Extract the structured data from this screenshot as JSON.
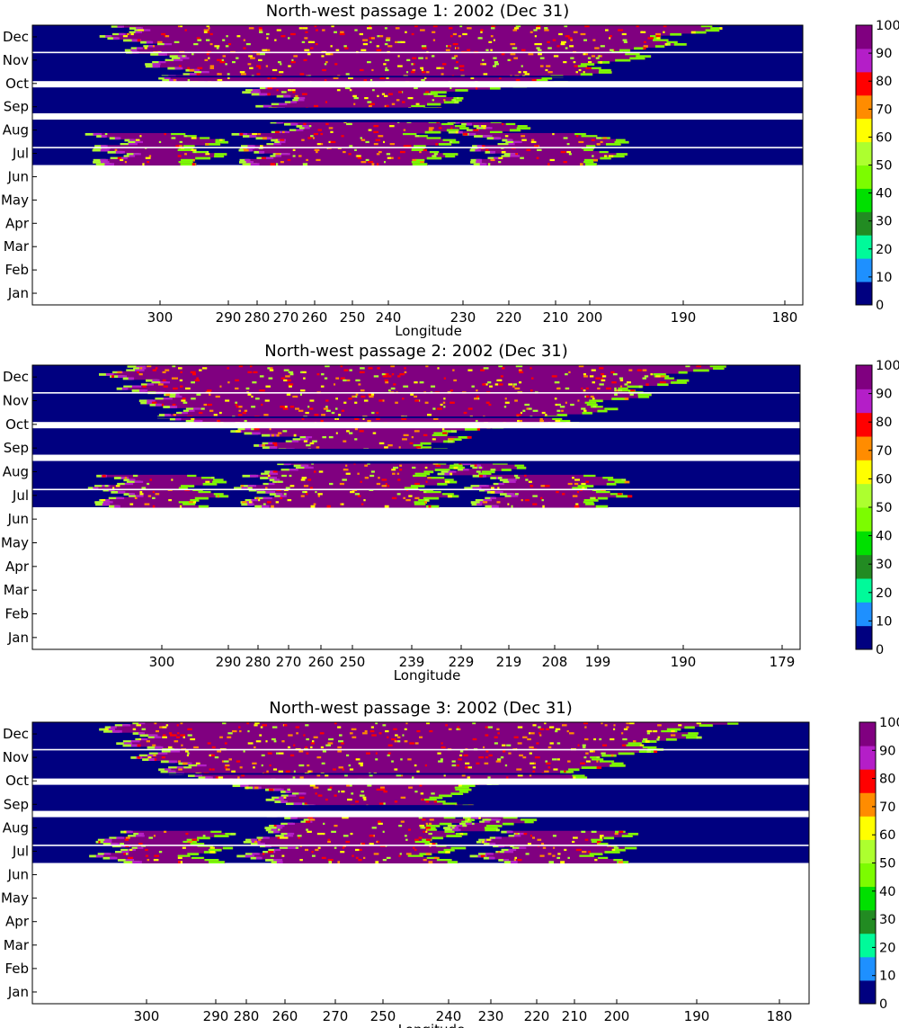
{
  "figure": {
    "title": "",
    "colors": {
      "ocean": "#000080",
      "background": "#ffffff",
      "axes": "#000000"
    }
  },
  "chart_data": [
    {
      "type": "heatmap",
      "title": "North-west passage 1: 2002 (Dec 31)",
      "xlabel": "Longitude",
      "ylabel": "",
      "x_ticks": [
        "300",
        "290",
        "280",
        "270",
        "260",
        "250",
        "240",
        "230",
        "220",
        "210",
        "200",
        "190",
        "180"
      ],
      "y_ticks": [
        "Jan",
        "Feb",
        "Mar",
        "Apr",
        "May",
        "Jun",
        "Jul",
        "Aug",
        "Sep",
        "Oct",
        "Nov",
        "Dec"
      ],
      "data_months": [
        "Jul",
        "Aug",
        "Sep",
        "Oct",
        "Nov",
        "Dec"
      ],
      "colorbar": {
        "ticks": [
          "0",
          "10",
          "20",
          "30",
          "40",
          "50",
          "60",
          "70",
          "80",
          "90",
          "100"
        ],
        "range": [
          0,
          100
        ],
        "colors": [
          "#000080",
          "#1e90ff",
          "#00fa9a",
          "#228b22",
          "#00e000",
          "#7cfc00",
          "#adff2f",
          "#ffff00",
          "#ff8c00",
          "#ff0000",
          "#b41ec8",
          "#800080"
        ]
      }
    },
    {
      "type": "heatmap",
      "title": "North-west passage 2: 2002 (Dec 31)",
      "xlabel": "Longitude",
      "ylabel": "",
      "x_ticks": [
        "300",
        "290",
        "280",
        "270",
        "260",
        "250",
        "239",
        "229",
        "219",
        "208",
        "199",
        "190",
        "179"
      ],
      "y_ticks": [
        "Jan",
        "Feb",
        "Mar",
        "Apr",
        "May",
        "Jun",
        "Jul",
        "Aug",
        "Sep",
        "Oct",
        "Nov",
        "Dec"
      ],
      "data_months": [
        "Jul",
        "Aug",
        "Sep",
        "Oct",
        "Nov",
        "Dec"
      ],
      "colorbar": {
        "ticks": [
          "0",
          "10",
          "20",
          "30",
          "40",
          "50",
          "60",
          "70",
          "80",
          "90",
          "100"
        ],
        "range": [
          0,
          100
        ],
        "colors": [
          "#000080",
          "#1e90ff",
          "#00fa9a",
          "#228b22",
          "#00e000",
          "#7cfc00",
          "#adff2f",
          "#ffff00",
          "#ff8c00",
          "#ff0000",
          "#b41ec8",
          "#800080"
        ]
      }
    },
    {
      "type": "heatmap",
      "title": "North-west passage 3: 2002 (Dec 31)",
      "xlabel": "Longitude",
      "ylabel": "",
      "x_ticks": [
        "300",
        "290",
        "280",
        "260",
        "270",
        "250",
        "240",
        "230",
        "220",
        "210",
        "200",
        "190",
        "180"
      ],
      "y_ticks": [
        "Jan",
        "Feb",
        "Mar",
        "Apr",
        "May",
        "Jun",
        "Jul",
        "Aug",
        "Sep",
        "Oct",
        "Nov",
        "Dec"
      ],
      "data_months": [
        "Jul",
        "Aug",
        "Sep",
        "Oct",
        "Nov",
        "Dec"
      ],
      "colorbar": {
        "ticks": [
          "0",
          "10",
          "20",
          "30",
          "40",
          "50",
          "60",
          "70",
          "80",
          "90",
          "100"
        ],
        "range": [
          0,
          100
        ],
        "colors": [
          "#000080",
          "#1e90ff",
          "#00fa9a",
          "#228b22",
          "#00e000",
          "#7cfc00",
          "#adff2f",
          "#ffff00",
          "#ff8c00",
          "#ff0000",
          "#b41ec8",
          "#800080"
        ]
      }
    }
  ]
}
